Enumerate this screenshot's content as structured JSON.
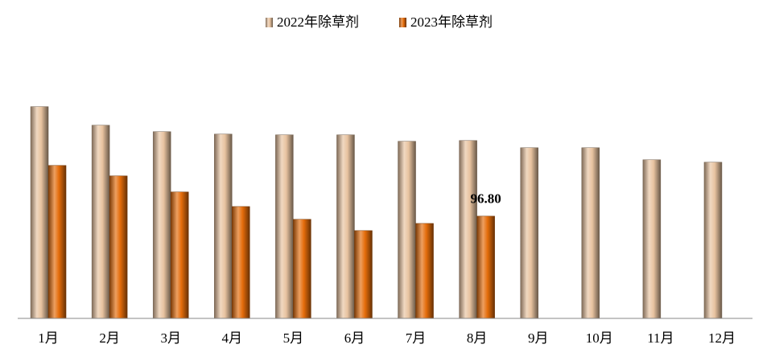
{
  "chart_data": {
    "type": "bar",
    "categories": [
      "1月",
      "2月",
      "3月",
      "4月",
      "5月",
      "6月",
      "7月",
      "8月",
      "9月",
      "10月",
      "11月",
      "12月"
    ],
    "series": [
      {
        "name": "2022年除草剂",
        "color": "#e8c3a0",
        "values": [
          200.5,
          182.9,
          176.8,
          174.5,
          173.8,
          173.8,
          167.7,
          168.4,
          161.6,
          161.6,
          150.2,
          147.9
        ]
      },
      {
        "name": "2023年除草剂",
        "color": "#e46c0a",
        "values": [
          144.8,
          134.9,
          119.7,
          105.9,
          93.8,
          83.1,
          89.9,
          96.8,
          null,
          null,
          null,
          null
        ],
        "value_labels": [
          null,
          null,
          null,
          null,
          null,
          null,
          null,
          "96.80",
          null,
          null,
          null,
          null
        ]
      }
    ],
    "ylim": [
      0,
      220
    ],
    "legend": "top"
  }
}
